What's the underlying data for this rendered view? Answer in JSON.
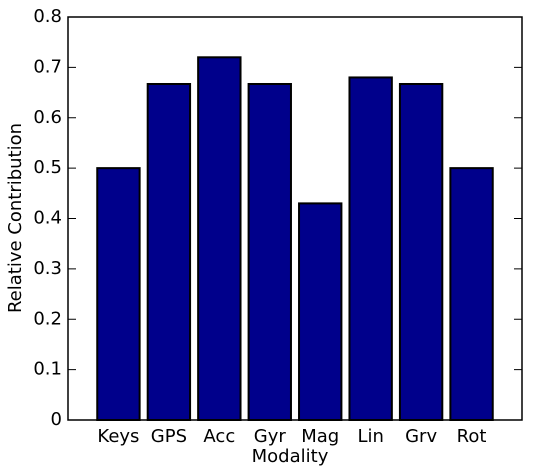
{
  "chart_data": {
    "type": "bar",
    "xlabel": "Modality",
    "ylabel": "Relative Contribution",
    "categories": [
      "Keys",
      "GPS",
      "Acc",
      "Gyr",
      "Mag",
      "Lin",
      "Grv",
      "Rot"
    ],
    "values": [
      0.5,
      0.667,
      0.72,
      0.667,
      0.43,
      0.68,
      0.667,
      0.5
    ],
    "color": "#00008b",
    "ylim": [
      0,
      0.8
    ],
    "yticks": [
      0,
      0.1,
      0.2,
      0.3,
      0.4,
      0.5,
      0.6,
      0.7,
      0.8
    ]
  }
}
